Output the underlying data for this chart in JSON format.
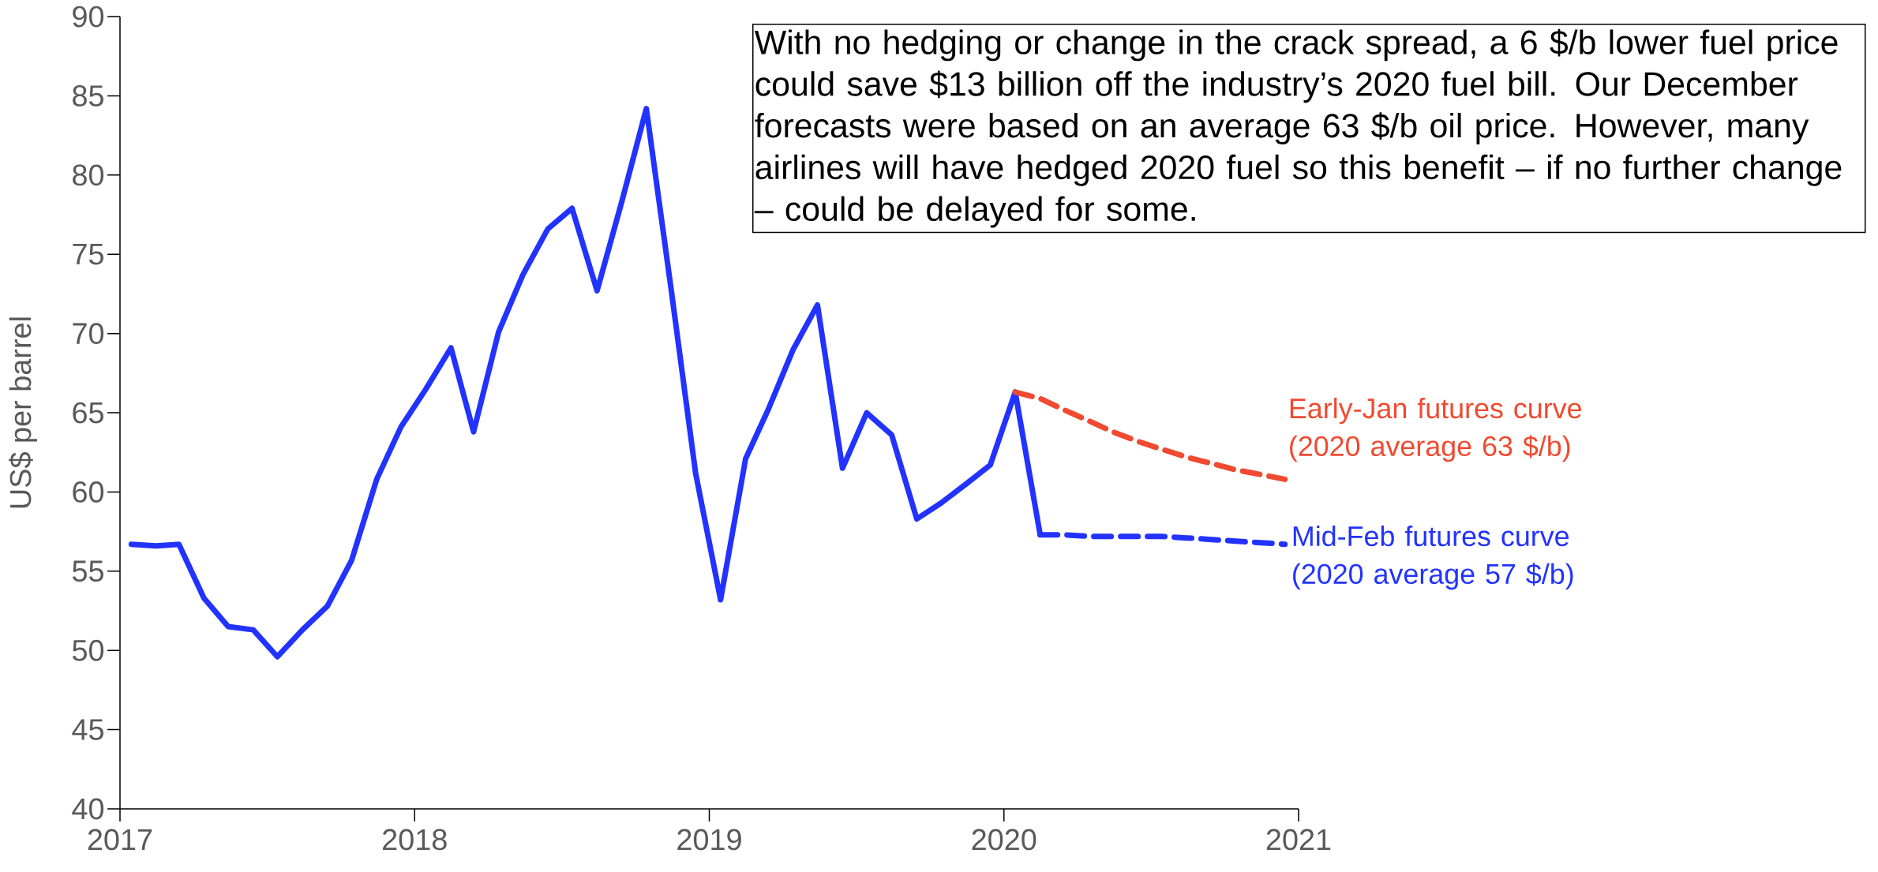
{
  "chart_data": {
    "type": "line",
    "ylabel": "US$ per barrel",
    "annotations": [
      "With no hedging or change in the crack spread, a 6 $/b lower fuel price could save $13 billion off the industry’s 2020 fuel bill. Our December forecasts were based on an average 63 $/b oil price. However, many airlines will have hedged 2020 fuel so this benefit – if no further change – could be delayed for some."
    ],
    "xlim": [
      "2017",
      "2021"
    ],
    "xticks": [
      "2017",
      "2018",
      "2019",
      "2020",
      "2021"
    ],
    "ylim": [
      40,
      90
    ],
    "yticks": [
      40,
      45,
      50,
      55,
      60,
      65,
      70,
      75,
      80,
      85,
      90
    ],
    "line_style": "solid",
    "series": [
      {
        "color": "#2233ff",
        "x": [
          "2017-01-15",
          "2017-02-15",
          "2017-03-15",
          "2017-04-15",
          "2017-05-15",
          "2017-06-15",
          "2017-07-15",
          "2017-08-15",
          "2017-09-15",
          "2017-10-15",
          "2017-11-15",
          "2017-12-15",
          "2018-01-15",
          "2018-02-15",
          "2018-03-15",
          "2018-04-15",
          "2018-05-15",
          "2018-06-15",
          "2018-07-15",
          "2018-08-15",
          "2018-09-15",
          "2018-10-15",
          "2018-11-15",
          "2018-12-15",
          "2019-01-15",
          "2019-02-15",
          "2019-03-15",
          "2019-04-15",
          "2019-05-15",
          "2019-06-15",
          "2019-07-15",
          "2019-08-15",
          "2019-09-15",
          "2019-10-15",
          "2019-11-15",
          "2019-12-15",
          "2020-01-15",
          "2020-02-15"
        ],
        "values": [
          56.7,
          56.6,
          56.7,
          53.3,
          51.5,
          51.3,
          49.6,
          51.3,
          52.8,
          55.7,
          60.8,
          64.1,
          66.5,
          69.1,
          63.8,
          70.1,
          73.7,
          76.6,
          77.9,
          72.7,
          78.4,
          84.2,
          72.7,
          61.2,
          53.2,
          62.1,
          65.2,
          69.0,
          71.8,
          61.5,
          65.0,
          63.6,
          58.3,
          59.3,
          60.5,
          61.7,
          66.3,
          57.3
        ]
      },
      {
        "name": "Early-Jan futures curve (2020 average 63 $/b)",
        "color": "#f04a30",
        "line_style": "dashed",
        "x": [
          "2020-01-15",
          "2020-02-15",
          "2020-03-15",
          "2020-04-15",
          "2020-05-15",
          "2020-06-15",
          "2020-07-15",
          "2020-08-15",
          "2020-09-15",
          "2020-10-15",
          "2020-11-15",
          "2020-12-15"
        ],
        "values": [
          66.3,
          65.9,
          65.2,
          64.5,
          63.8,
          63.2,
          62.7,
          62.2,
          61.8,
          61.4,
          61.1,
          60.8
        ]
      },
      {
        "name": "Mid-Feb futures curve (2020 average 57 $/b)",
        "color": "#2233ff",
        "line_style": "dashed",
        "x": [
          "2020-02-15",
          "2020-03-15",
          "2020-04-15",
          "2020-05-15",
          "2020-06-15",
          "2020-07-15",
          "2020-08-15",
          "2020-09-15",
          "2020-10-15",
          "2020-11-15",
          "2020-12-15"
        ],
        "values": [
          57.3,
          57.3,
          57.2,
          57.2,
          57.2,
          57.2,
          57.1,
          57.0,
          56.9,
          56.8,
          56.7
        ]
      }
    ]
  }
}
